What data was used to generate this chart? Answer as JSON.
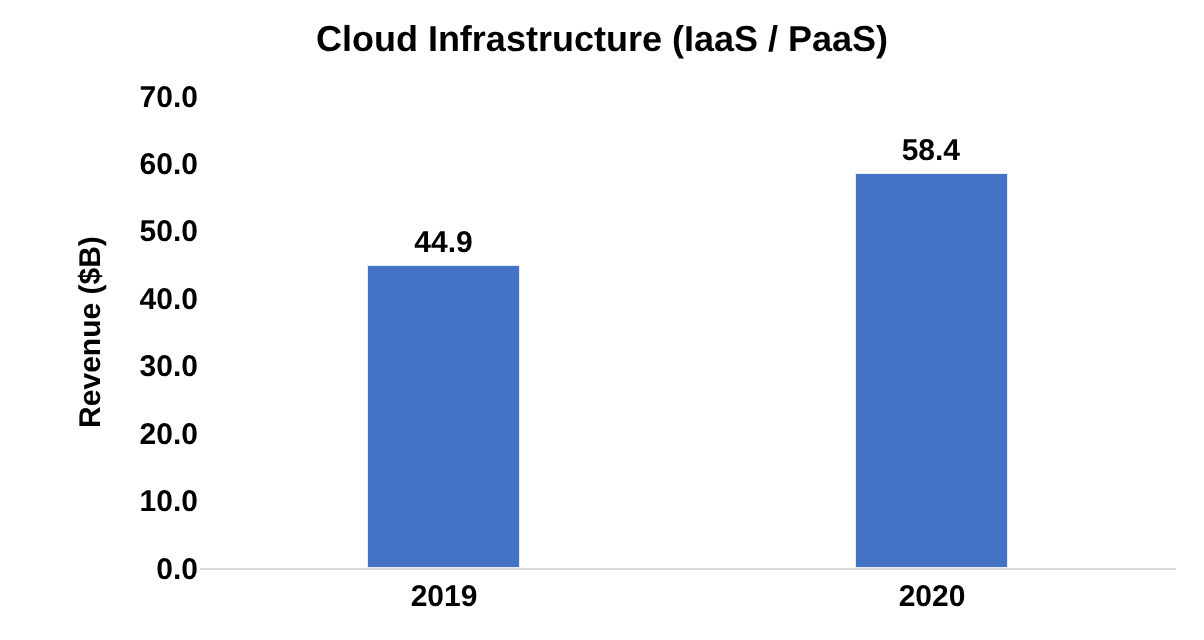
{
  "chart_data": {
    "type": "bar",
    "title": "Cloud Infrastructure (IaaS / PaaS)",
    "ylabel": "Revenue ($B)",
    "categories": [
      "2019",
      "2020"
    ],
    "series": [
      {
        "color": "#4472c4",
        "values": [
          44.9,
          58.4
        ]
      }
    ],
    "data_labels": true,
    "ylim": [
      0,
      70
    ],
    "yticks": [
      {
        "value": 0,
        "label": "0.0"
      },
      {
        "value": 10,
        "label": "10.0"
      },
      {
        "value": 20,
        "label": "20.0"
      },
      {
        "value": 30,
        "label": "30.0"
      },
      {
        "value": 40,
        "label": "40.0"
      },
      {
        "value": 50,
        "label": "50.0"
      },
      {
        "value": 60,
        "label": "60.0"
      },
      {
        "value": 70,
        "label": "70.0"
      }
    ],
    "grid": false
  }
}
